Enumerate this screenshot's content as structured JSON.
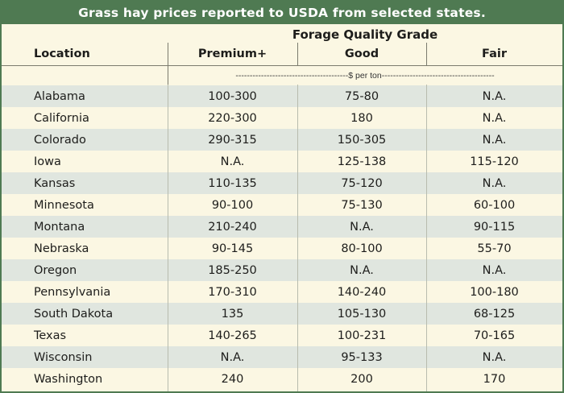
{
  "title": "Grass hay prices reported to USDA from selected states.",
  "column_group": "Forage Quality Grade",
  "columns": [
    "Location",
    "Premium+",
    "Good",
    "Fair"
  ],
  "unit_label": "----------------------------------------$ per ton----------------------------------------",
  "rows": [
    {
      "location": "Alabama",
      "premium": "100-300",
      "good": "75-80",
      "fair": "N.A."
    },
    {
      "location": "California",
      "premium": "220-300",
      "good": "180",
      "fair": "N.A."
    },
    {
      "location": "Colorado",
      "premium": "290-315",
      "good": "150-305",
      "fair": "N.A."
    },
    {
      "location": "Iowa",
      "premium": "N.A.",
      "good": "125-138",
      "fair": "115-120"
    },
    {
      "location": "Kansas",
      "premium": "110-135",
      "good": "75-120",
      "fair": "N.A."
    },
    {
      "location": "Minnesota",
      "premium": "90-100",
      "good": "75-130",
      "fair": "60-100"
    },
    {
      "location": "Montana",
      "premium": "210-240",
      "good": "N.A.",
      "fair": "90-115"
    },
    {
      "location": "Nebraska",
      "premium": "90-145",
      "good": "80-100",
      "fair": "55-70"
    },
    {
      "location": "Oregon",
      "premium": "185-250",
      "good": "N.A.",
      "fair": "N.A."
    },
    {
      "location": "Pennsylvania",
      "premium": "170-310",
      "good": "140-240",
      "fair": "100-180"
    },
    {
      "location": "South Dakota",
      "premium": "135",
      "good": "105-130",
      "fair": "68-125"
    },
    {
      "location": "Texas",
      "premium": "140-265",
      "good": "100-231",
      "fair": "70-165"
    },
    {
      "location": "Wisconsin",
      "premium": "N.A.",
      "good": "95-133",
      "fair": "N.A."
    },
    {
      "location": "Washington",
      "premium": "240",
      "good": "200",
      "fair": "170"
    }
  ],
  "colors": {
    "title_bar": "#4f7a52",
    "row_shade": "#e0e6df",
    "background": "#fbf7e3",
    "text": "#1d1d1b"
  }
}
